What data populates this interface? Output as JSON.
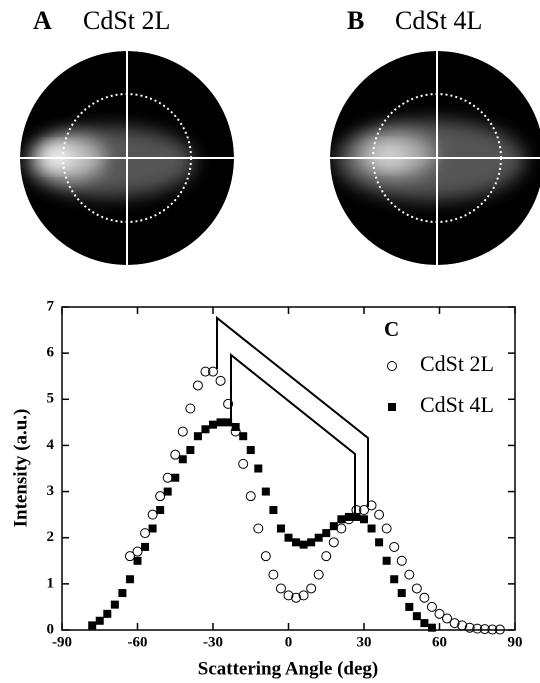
{
  "panels": [
    {
      "letter": "A",
      "label": "CdSt 2L"
    },
    {
      "letter": "B",
      "label": "CdSt 4L"
    }
  ],
  "chart_data": {
    "type": "scatter",
    "panel_letter": "C",
    "xlabel": "Scattering Angle (deg)",
    "ylabel": "Intensity (a.u.)",
    "xlim": [
      -90,
      90
    ],
    "xticks": [
      -90,
      -60,
      -30,
      0,
      30,
      60,
      90
    ],
    "ylim": [
      0,
      7
    ],
    "yticks": [
      0,
      1,
      2,
      3,
      4,
      5,
      6,
      7
    ],
    "legend": "upper right",
    "series": [
      {
        "name": "CdSt 2L",
        "marker": "open-circle",
        "color": "#000000",
        "x": [
          -63,
          -60,
          -57,
          -54,
          -51,
          -48,
          -45,
          -42,
          -39,
          -36,
          -33,
          -30,
          -27,
          -24,
          -21,
          -18,
          -15,
          -12,
          -9,
          -6,
          -3,
          0,
          3,
          6,
          9,
          12,
          15,
          18,
          21,
          24,
          27,
          30,
          33,
          36,
          39,
          42,
          45,
          48,
          51,
          54,
          57,
          60,
          63,
          66,
          69,
          72,
          75,
          78,
          81,
          84
        ],
        "values": [
          1.6,
          1.7,
          2.1,
          2.5,
          2.9,
          3.3,
          3.8,
          4.3,
          4.8,
          5.3,
          5.6,
          5.6,
          5.4,
          4.9,
          4.3,
          3.6,
          2.9,
          2.2,
          1.6,
          1.2,
          0.9,
          0.75,
          0.7,
          0.75,
          0.9,
          1.2,
          1.6,
          1.9,
          2.2,
          2.4,
          2.6,
          2.6,
          2.7,
          2.5,
          2.2,
          1.8,
          1.5,
          1.2,
          0.9,
          0.7,
          0.5,
          0.35,
          0.25,
          0.15,
          0.1,
          0.05,
          0.03,
          0.02,
          0.01,
          0.01
        ]
      },
      {
        "name": "CdSt 4L",
        "marker": "filled-square",
        "color": "#000000",
        "x": [
          -78,
          -75,
          -72,
          -69,
          -66,
          -63,
          -60,
          -57,
          -54,
          -51,
          -48,
          -45,
          -42,
          -39,
          -36,
          -33,
          -30,
          -27,
          -24,
          -21,
          -18,
          -15,
          -12,
          -9,
          -6,
          -3,
          0,
          3,
          6,
          9,
          12,
          15,
          18,
          21,
          24,
          27,
          30,
          33,
          36,
          39,
          42,
          45,
          48,
          51,
          54,
          57
        ],
        "values": [
          0.1,
          0.2,
          0.35,
          0.55,
          0.8,
          1.1,
          1.5,
          1.8,
          2.2,
          2.6,
          3.0,
          3.3,
          3.7,
          3.9,
          4.2,
          4.35,
          4.45,
          4.5,
          4.5,
          4.4,
          4.2,
          3.9,
          3.5,
          3.0,
          2.6,
          2.2,
          2.0,
          1.9,
          1.85,
          1.9,
          2.0,
          2.1,
          2.25,
          2.4,
          2.45,
          2.45,
          2.4,
          2.2,
          1.9,
          1.5,
          1.1,
          0.8,
          0.5,
          0.3,
          0.15,
          0.05
        ]
      }
    ]
  }
}
